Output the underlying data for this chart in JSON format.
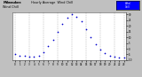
{
  "title_left": "Milwaukee",
  "title_mid": "Hourly Average  Wind Chill",
  "x_hours": [
    0,
    1,
    2,
    3,
    4,
    5,
    6,
    7,
    8,
    9,
    10,
    11,
    12,
    13,
    14,
    15,
    16,
    17,
    18,
    19,
    20,
    21,
    22,
    23
  ],
  "wind_chill": [
    -5,
    -6,
    -6,
    -7,
    -7,
    -6,
    -3,
    2,
    8,
    15,
    22,
    27,
    30,
    28,
    24,
    17,
    10,
    4,
    -1,
    -4,
    -6,
    -7,
    -8,
    -8
  ],
  "ylim": [
    -10,
    32
  ],
  "xlim": [
    -0.5,
    23.5
  ],
  "dot_color": "#0000CC",
  "dot_size": 1.5,
  "grid_color": "#888888",
  "bg_color": "#FFFFFF",
  "outer_bg": "#C0C0C0",
  "legend_box_bg": "#0000FF",
  "ytick_values": [
    -10,
    -5,
    0,
    5,
    10,
    15,
    20,
    25,
    30
  ],
  "ytick_labels": [
    "-10",
    "-5",
    "0",
    "5",
    "10",
    "15",
    "20",
    "25",
    "30"
  ],
  "grid_x": [
    0,
    3,
    6,
    9,
    12,
    15,
    18,
    21,
    23
  ]
}
